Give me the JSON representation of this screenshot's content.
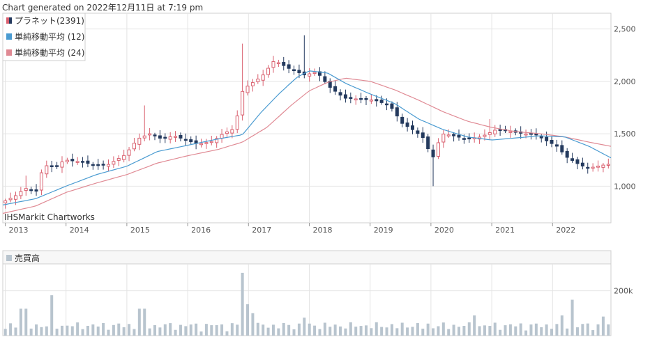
{
  "header": {
    "generated_text": "Chart generated on 2022年12月11日 at 7:19 pm"
  },
  "watermark": "IHSMarkit Chartworks",
  "legend": {
    "price_label": "プラネット(2391)",
    "ma12_label": "単純移動平均 (12)",
    "ma24_label": "単純移動平均 (24)"
  },
  "volume_panel": {
    "label": "売買高"
  },
  "colors": {
    "up": "#d95f6e",
    "down": "#243a5e",
    "ma12": "#4a9bd1",
    "ma24": "#e08a94",
    "volume": "#b8c4ce",
    "grid": "#e4e4e4"
  },
  "chart_data": [
    {
      "type": "candlestick",
      "series": [
        {
          "name": "プラネット(2391)"
        },
        {
          "name": "単純移動平均 (12)"
        },
        {
          "name": "単純移動平均 (24)"
        }
      ],
      "x_ticks": [
        "2013",
        "2014",
        "2015",
        "2016",
        "2017",
        "2018",
        "2019",
        "2020",
        "2021",
        "2022"
      ],
      "y_ticks": [
        "1,000",
        "1,500",
        "2,000",
        "2,500"
      ],
      "ylim": [
        650,
        2650
      ],
      "xlim": [
        2012.96,
        2022.96
      ],
      "price_anchors": [
        [
          2012.96,
          840
        ],
        [
          2013.2,
          910
        ],
        [
          2013.35,
          980
        ],
        [
          2013.55,
          950
        ],
        [
          2013.65,
          1200
        ],
        [
          2013.85,
          1180
        ],
        [
          2014.0,
          1250
        ],
        [
          2014.3,
          1230
        ],
        [
          2014.5,
          1200
        ],
        [
          2014.7,
          1200
        ],
        [
          2015.0,
          1300
        ],
        [
          2015.2,
          1450
        ],
        [
          2015.4,
          1500
        ],
        [
          2015.6,
          1450
        ],
        [
          2015.8,
          1480
        ],
        [
          2016.2,
          1400
        ],
        [
          2016.45,
          1430
        ],
        [
          2016.6,
          1500
        ],
        [
          2016.8,
          1550
        ],
        [
          2016.92,
          1900
        ],
        [
          2017.0,
          1950
        ],
        [
          2017.25,
          2050
        ],
        [
          2017.45,
          2200
        ],
        [
          2017.7,
          2120
        ],
        [
          2017.95,
          2060
        ],
        [
          2018.15,
          2090
        ],
        [
          2018.35,
          1950
        ],
        [
          2018.6,
          1840
        ],
        [
          2018.85,
          1830
        ],
        [
          2019.1,
          1820
        ],
        [
          2019.35,
          1770
        ],
        [
          2019.55,
          1600
        ],
        [
          2019.75,
          1530
        ],
        [
          2019.9,
          1460
        ],
        [
          2020.05,
          1260
        ],
        [
          2020.2,
          1500
        ],
        [
          2020.4,
          1480
        ],
        [
          2020.6,
          1450
        ],
        [
          2020.85,
          1470
        ],
        [
          2021.1,
          1540
        ],
        [
          2021.35,
          1520
        ],
        [
          2021.55,
          1500
        ],
        [
          2021.75,
          1490
        ],
        [
          2021.9,
          1440
        ],
        [
          2022.1,
          1380
        ],
        [
          2022.25,
          1280
        ],
        [
          2022.45,
          1210
        ],
        [
          2022.6,
          1170
        ],
        [
          2022.85,
          1200
        ],
        [
          2022.96,
          1210
        ]
      ],
      "ma12_anchors": [
        [
          2012.96,
          820
        ],
        [
          2013.5,
          880
        ],
        [
          2014.0,
          1000
        ],
        [
          2014.5,
          1110
        ],
        [
          2015.0,
          1190
        ],
        [
          2015.5,
          1330
        ],
        [
          2016.0,
          1390
        ],
        [
          2016.5,
          1450
        ],
        [
          2016.9,
          1490
        ],
        [
          2017.2,
          1700
        ],
        [
          2017.5,
          1880
        ],
        [
          2017.8,
          2040
        ],
        [
          2018.0,
          2100
        ],
        [
          2018.3,
          2080
        ],
        [
          2018.6,
          1980
        ],
        [
          2019.0,
          1880
        ],
        [
          2019.4,
          1790
        ],
        [
          2019.8,
          1640
        ],
        [
          2020.2,
          1540
        ],
        [
          2020.6,
          1470
        ],
        [
          2021.0,
          1440
        ],
        [
          2021.4,
          1460
        ],
        [
          2021.8,
          1480
        ],
        [
          2022.2,
          1470
        ],
        [
          2022.6,
          1380
        ],
        [
          2022.96,
          1270
        ]
      ],
      "ma24_anchors": [
        [
          2012.96,
          740
        ],
        [
          2013.5,
          810
        ],
        [
          2014.0,
          940
        ],
        [
          2014.5,
          1030
        ],
        [
          2015.0,
          1110
        ],
        [
          2015.5,
          1220
        ],
        [
          2016.0,
          1290
        ],
        [
          2016.5,
          1350
        ],
        [
          2016.9,
          1420
        ],
        [
          2017.3,
          1560
        ],
        [
          2017.7,
          1770
        ],
        [
          2018.0,
          1910
        ],
        [
          2018.3,
          1990
        ],
        [
          2018.6,
          2030
        ],
        [
          2019.0,
          2000
        ],
        [
          2019.4,
          1920
        ],
        [
          2019.8,
          1820
        ],
        [
          2020.2,
          1710
        ],
        [
          2020.6,
          1620
        ],
        [
          2021.0,
          1560
        ],
        [
          2021.4,
          1520
        ],
        [
          2021.8,
          1500
        ],
        [
          2022.2,
          1470
        ],
        [
          2022.6,
          1420
        ],
        [
          2022.96,
          1380
        ]
      ],
      "spikes": [
        {
          "x": 2013.35,
          "high": 1100
        },
        {
          "x": 2015.3,
          "high": 1770
        },
        {
          "x": 2016.92,
          "high": 2360
        },
        {
          "x": 2017.9,
          "high": 2440
        },
        {
          "x": 2020.05,
          "low": 1000
        },
        {
          "x": 2020.98,
          "high": 1640
        }
      ]
    },
    {
      "type": "bar",
      "name": "売買高",
      "y_ticks": [
        "200k"
      ],
      "ylim": [
        0,
        320000
      ],
      "xlim": [
        2012.96,
        2022.96
      ],
      "volume_spikes": [
        {
          "x": 2013.3,
          "v": 120000
        },
        {
          "x": 2013.75,
          "v": 180000
        },
        {
          "x": 2015.25,
          "v": 120000
        },
        {
          "x": 2016.87,
          "v": 280000
        },
        {
          "x": 2016.97,
          "v": 140000
        },
        {
          "x": 2017.05,
          "v": 100000
        },
        {
          "x": 2017.92,
          "v": 80000
        },
        {
          "x": 2020.7,
          "v": 90000
        },
        {
          "x": 2022.35,
          "v": 160000
        },
        {
          "x": 2022.15,
          "v": 90000
        },
        {
          "x": 2022.85,
          "v": 85000
        }
      ]
    }
  ]
}
